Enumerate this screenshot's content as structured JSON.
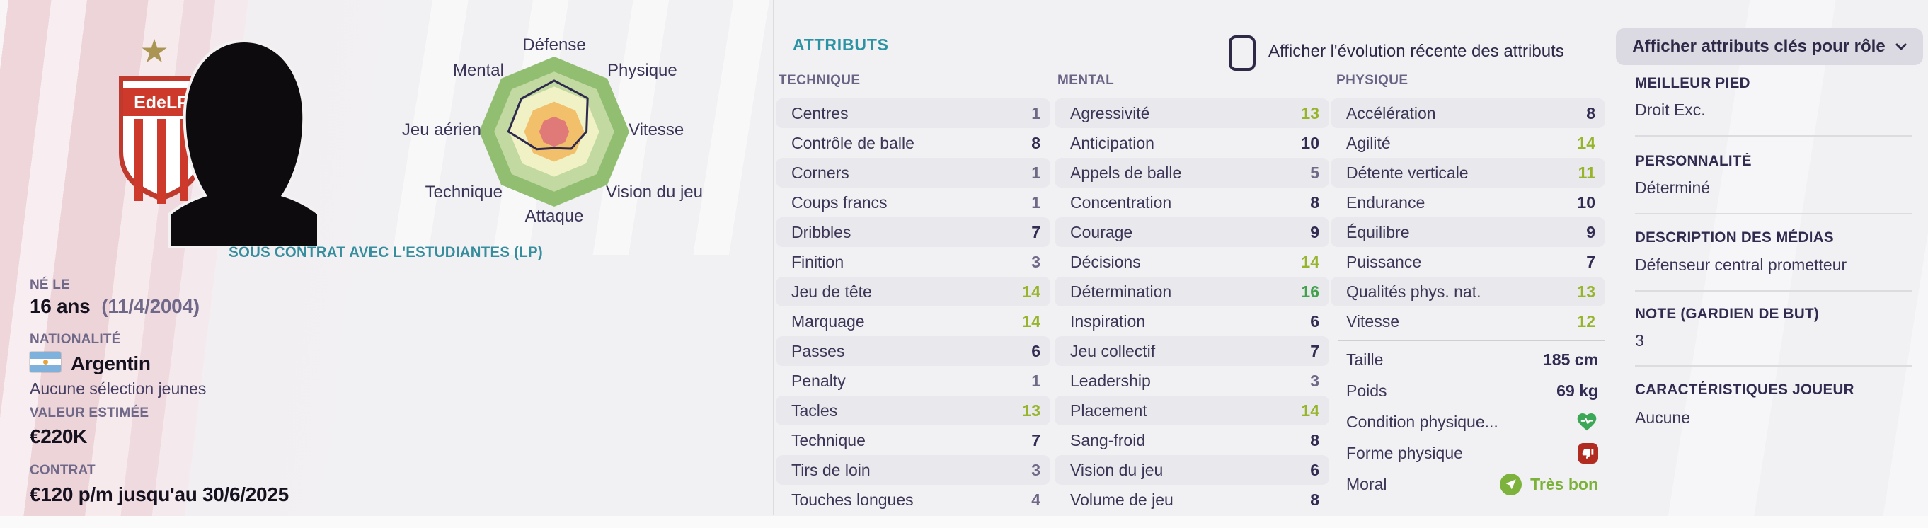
{
  "banner": {
    "contract": "SOUS CONTRAT AVEC L'ESTUDIANTES (LP)"
  },
  "badge": {
    "text": "EdeLP",
    "star_icon": "★"
  },
  "player_info": {
    "born_label": "NÉ LE",
    "born_value": "16 ans",
    "born_date": "(11/4/2004)",
    "nationality_label": "NATIONALITÉ",
    "nationality_value": "Argentin",
    "youth_note": "Aucune sélection jeunes",
    "value_label": "VALEUR ESTIMÉE",
    "value_value": "€220K",
    "contract_label": "CONTRAT",
    "contract_value": "€120 p/m jusqu'au 30/6/2025"
  },
  "controls": {
    "evolution_checkbox_label": "Afficher l'évolution récente des attributs",
    "role_dropdown_label": "Afficher attributs clés pour rôle"
  },
  "attributes": {
    "title": "ATTRIBUTS",
    "columns": [
      {
        "header": "TECHNIQUE",
        "rows": [
          {
            "label": "Centres",
            "value": 1
          },
          {
            "label": "Contrôle de balle",
            "value": 8
          },
          {
            "label": "Corners",
            "value": 1
          },
          {
            "label": "Coups francs",
            "value": 1
          },
          {
            "label": "Dribbles",
            "value": 7
          },
          {
            "label": "Finition",
            "value": 3
          },
          {
            "label": "Jeu de tête",
            "value": 14
          },
          {
            "label": "Marquage",
            "value": 14
          },
          {
            "label": "Passes",
            "value": 6
          },
          {
            "label": "Penalty",
            "value": 1
          },
          {
            "label": "Tacles",
            "value": 13
          },
          {
            "label": "Technique",
            "value": 7
          },
          {
            "label": "Tirs de loin",
            "value": 3
          },
          {
            "label": "Touches longues",
            "value": 4
          }
        ]
      },
      {
        "header": "MENTAL",
        "rows": [
          {
            "label": "Agressivité",
            "value": 13
          },
          {
            "label": "Anticipation",
            "value": 10
          },
          {
            "label": "Appels de balle",
            "value": 5
          },
          {
            "label": "Concentration",
            "value": 8
          },
          {
            "label": "Courage",
            "value": 9
          },
          {
            "label": "Décisions",
            "value": 14
          },
          {
            "label": "Détermination",
            "value": 16
          },
          {
            "label": "Inspiration",
            "value": 6
          },
          {
            "label": "Jeu collectif",
            "value": 7
          },
          {
            "label": "Leadership",
            "value": 3
          },
          {
            "label": "Placement",
            "value": 14
          },
          {
            "label": "Sang-froid",
            "value": 8
          },
          {
            "label": "Vision du jeu",
            "value": 6
          },
          {
            "label": "Volume de jeu",
            "value": 8
          }
        ]
      },
      {
        "header": "PHYSIQUE",
        "rows": [
          {
            "label": "Accélération",
            "value": 8
          },
          {
            "label": "Agilité",
            "value": 14
          },
          {
            "label": "Détente verticale",
            "value": 11
          },
          {
            "label": "Endurance",
            "value": 10
          },
          {
            "label": "Équilibre",
            "value": 9
          },
          {
            "label": "Puissance",
            "value": 7
          },
          {
            "label": "Qualités phys. nat.",
            "value": 13
          },
          {
            "label": "Vitesse",
            "value": 12
          }
        ]
      }
    ],
    "physical": {
      "rows": [
        {
          "label": "Taille",
          "value": "185 cm"
        },
        {
          "label": "Poids",
          "value": "69 kg"
        },
        {
          "label": "Condition physique...",
          "value": "",
          "icon": "heart-pulse"
        },
        {
          "label": "Forme physique",
          "value": "",
          "icon": "thumbs-down"
        },
        {
          "label": "Moral",
          "value": "Très bon",
          "icon": "send-arrow"
        }
      ]
    }
  },
  "sidebar": {
    "sections": [
      {
        "header": "MEILLEUR PIED",
        "value": "Droit Exc."
      },
      {
        "header": "PERSONNALITÉ",
        "value": "Déterminé"
      },
      {
        "header": "DESCRIPTION DES MÉDIAS",
        "value": "Défenseur central prometteur"
      },
      {
        "header": "NOTE (GARDIEN DE BUT)",
        "value": "3"
      },
      {
        "header": "CARACTÉRISTIQUES JOUEUR",
        "value": "Aucune"
      }
    ]
  },
  "colors": {
    "teal_accent": "#2b93a3",
    "value_low": "#6f6887",
    "value_mid": "#332c52",
    "value_high": "#96b42c",
    "value_top": "#42a14c",
    "moral_green": "#7cb23a",
    "condition_heart_green": "#3ca757",
    "sharpness_red": "#b12b20"
  },
  "chart_data": {
    "type": "radar",
    "axes": [
      "Défense",
      "Physique",
      "Vitesse",
      "Vision du jeu",
      "Attaque",
      "Technique",
      "Jeu aérien",
      "Mental"
    ],
    "values": [
      13.6,
      12.6,
      8.6,
      6.4,
      4.4,
      6.6,
      12.2,
      12.4
    ],
    "scale_max": 20,
    "rings": 5,
    "ring_colors_outer_to_inner": [
      "#92be72",
      "#c3d9a2",
      "#f0f2c5",
      "#f2bf6b",
      "#e07a78"
    ],
    "outline_color": "#2e2a4d",
    "legend_position": "none",
    "grid": "concentric-octagons"
  }
}
